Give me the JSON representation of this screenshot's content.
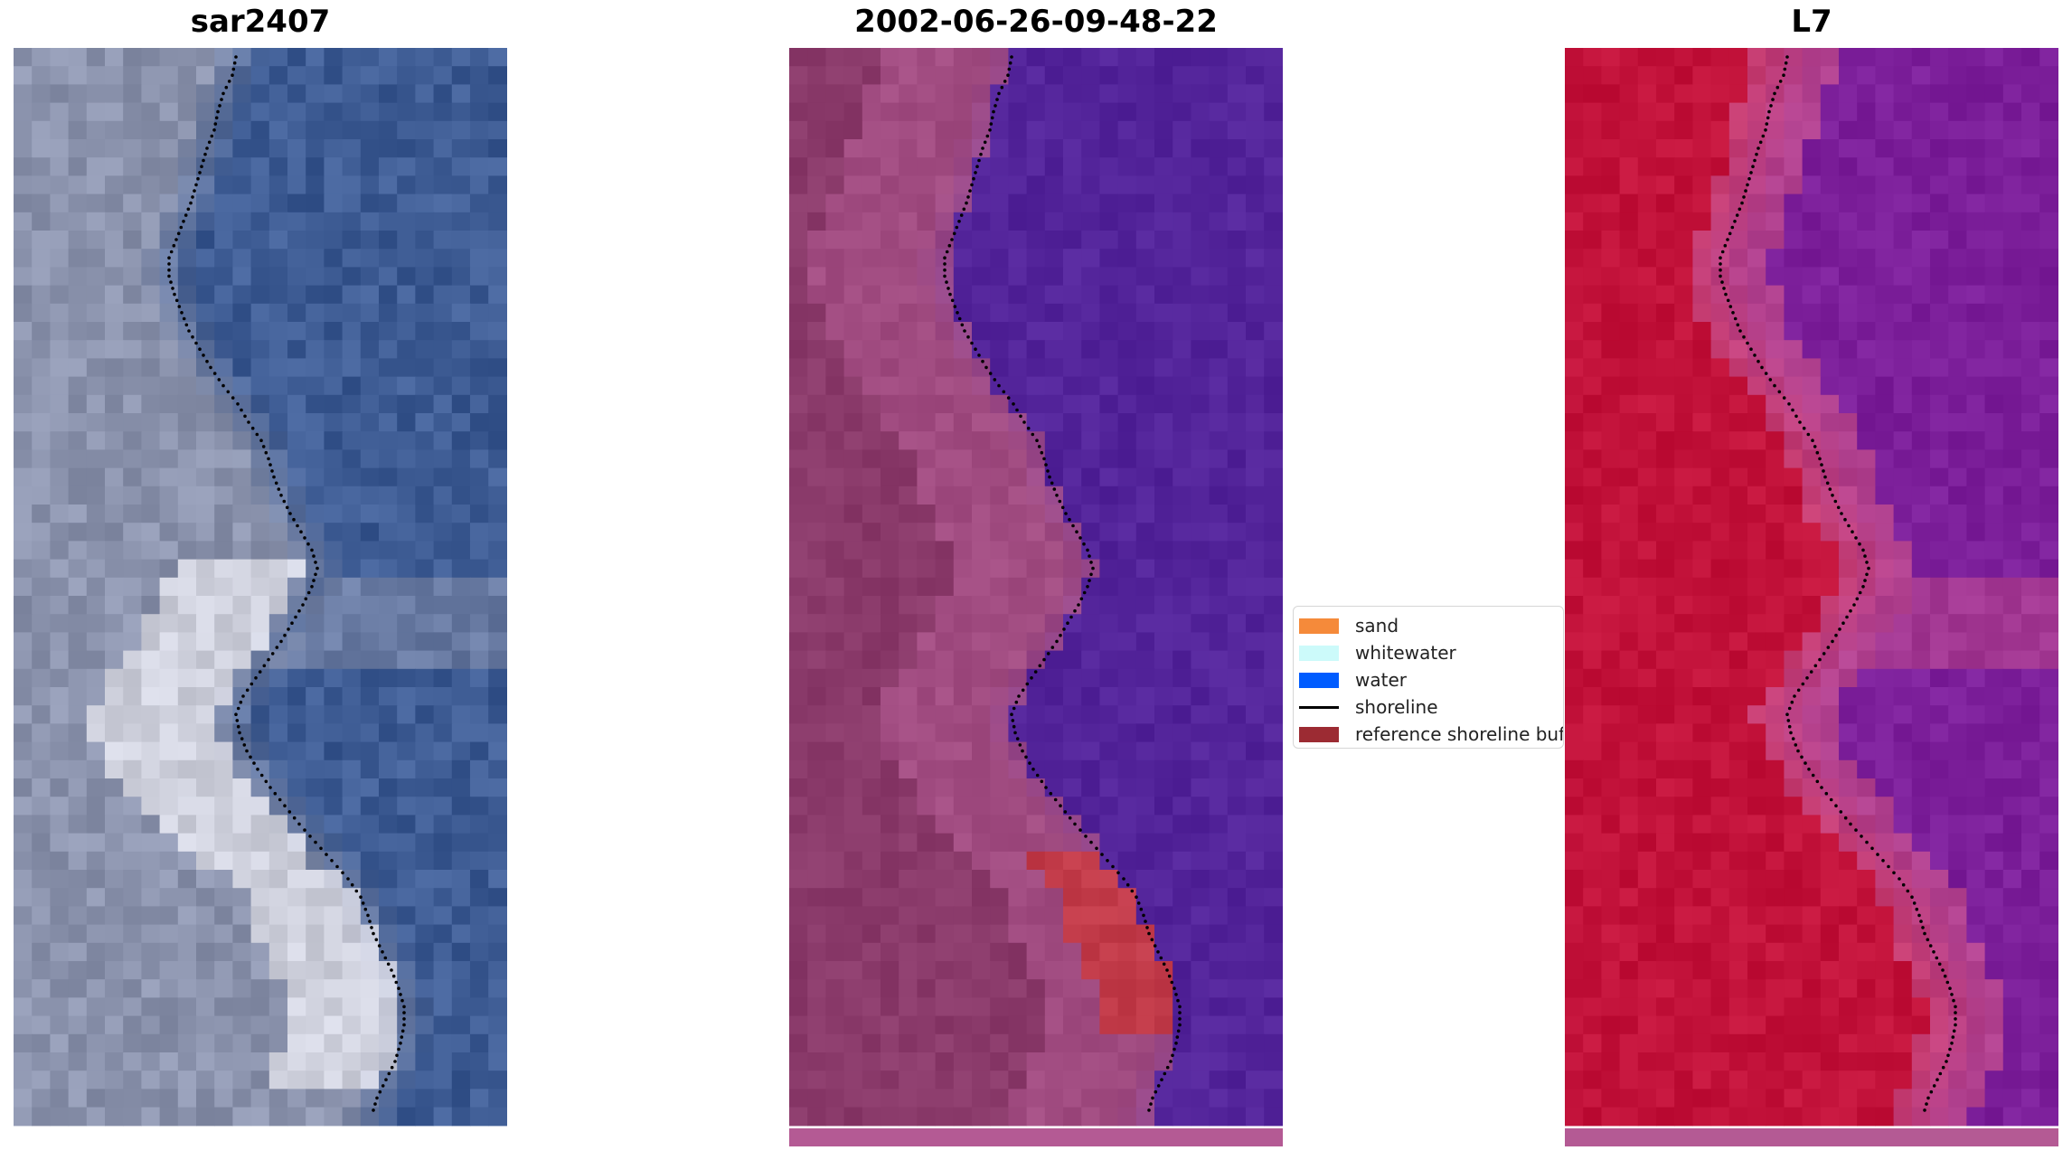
{
  "panels": [
    {
      "title": "sar2407",
      "kind": "rgb"
    },
    {
      "title": "2002-06-26-09-48-22",
      "kind": "classified"
    },
    {
      "title": "L7",
      "kind": "nir"
    }
  ],
  "legend": {
    "items": [
      {
        "label": "sand",
        "color": "#f58a3a",
        "type": "patch"
      },
      {
        "label": "whitewater",
        "color": "#ccfafa",
        "type": "patch"
      },
      {
        "label": "water",
        "color": "#005cff",
        "type": "patch"
      },
      {
        "label": "shoreline",
        "color": "#000000",
        "type": "line"
      },
      {
        "label": "reference shoreline buffer",
        "color": "#9c2b33",
        "type": "patch"
      }
    ]
  },
  "colors": {
    "rgb_land": "#8b93ad",
    "rgb_water": "#3e5c94",
    "rgb_bright": "#ecebf2",
    "classified_land": "#8a3a6a",
    "classified_water": "#53249a",
    "classified_buffer": "#c8383f",
    "nir_land": "#c2123a",
    "nir_water": "#7c1f9a",
    "nir_transition": "#c84f8a",
    "shoreline_dots": "#000000"
  }
}
